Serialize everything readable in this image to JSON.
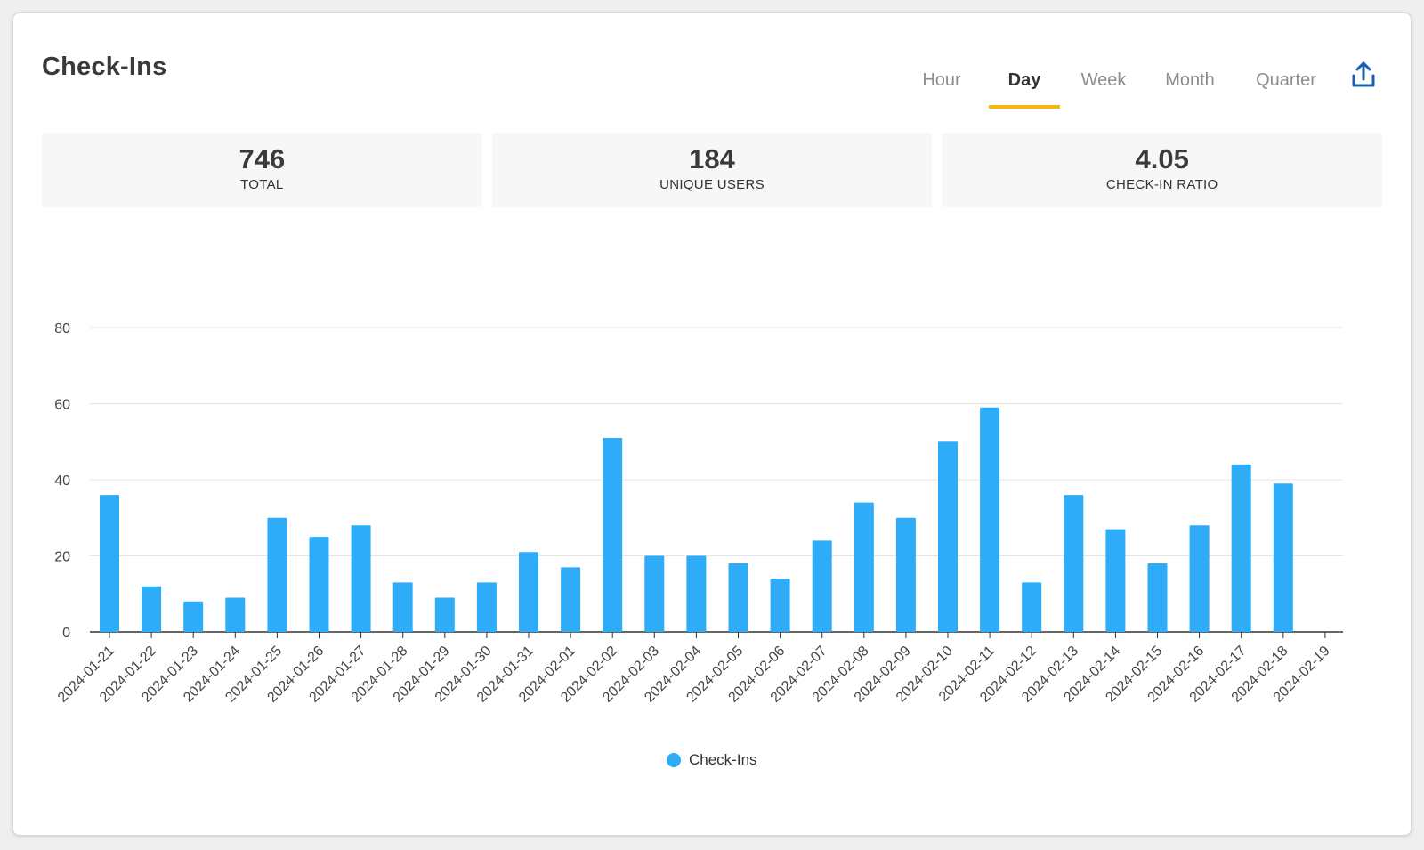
{
  "header": {
    "title": "Check-Ins",
    "tabs": [
      {
        "label": "Hour",
        "active": false
      },
      {
        "label": "Day",
        "active": true
      },
      {
        "label": "Week",
        "active": false
      },
      {
        "label": "Month",
        "active": false
      },
      {
        "label": "Quarter",
        "active": false
      }
    ],
    "export_icon": "upload-icon"
  },
  "stats": [
    {
      "value": "746",
      "label": "TOTAL"
    },
    {
      "value": "184",
      "label": "UNIQUE USERS"
    },
    {
      "value": "4.05",
      "label": "CHECK-IN RATIO"
    }
  ],
  "colors": {
    "bar": "#2eacf8",
    "tab_indicator": "#f5b90e",
    "accent_icon": "#1a5fb0"
  },
  "chart_data": {
    "type": "bar",
    "categories": [
      "2024-01-21",
      "2024-01-22",
      "2024-01-23",
      "2024-01-24",
      "2024-01-25",
      "2024-01-26",
      "2024-01-27",
      "2024-01-28",
      "2024-01-29",
      "2024-01-30",
      "2024-01-31",
      "2024-02-01",
      "2024-02-02",
      "2024-02-03",
      "2024-02-04",
      "2024-02-05",
      "2024-02-06",
      "2024-02-07",
      "2024-02-08",
      "2024-02-09",
      "2024-02-10",
      "2024-02-11",
      "2024-02-12",
      "2024-02-13",
      "2024-02-14",
      "2024-02-15",
      "2024-02-16",
      "2024-02-17",
      "2024-02-18",
      "2024-02-19"
    ],
    "series": [
      {
        "name": "Check-Ins",
        "values": [
          36,
          12,
          8,
          9,
          30,
          25,
          28,
          13,
          9,
          13,
          21,
          17,
          51,
          20,
          20,
          18,
          14,
          24,
          34,
          30,
          50,
          59,
          13,
          36,
          27,
          18,
          28,
          44,
          39,
          0
        ]
      }
    ],
    "ylim": [
      0,
      80
    ],
    "yticks": [
      0,
      20,
      40,
      60,
      80
    ],
    "grid": true,
    "legend_position": "bottom-center"
  }
}
